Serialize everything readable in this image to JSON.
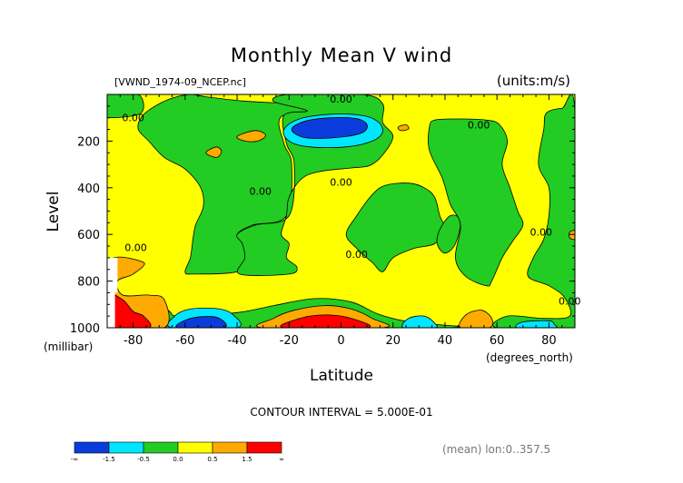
{
  "chart_data": {
    "type": "contour",
    "title": "Monthly Mean V wind",
    "dataset_label": "[VWND_1974-09_NCEP.nc]",
    "units_label": "(units:m/s)",
    "xlabel": "Latitude",
    "x_units": "(degrees_north)",
    "ylabel": "Level",
    "y_units": "(millibar)",
    "x_range": [
      -90,
      90
    ],
    "y_range": [
      1000,
      0
    ],
    "x_ticks": [
      -80,
      -60,
      -40,
      -20,
      0,
      20,
      40,
      60,
      80
    ],
    "y_ticks": [
      200,
      400,
      600,
      800,
      1000
    ],
    "contour_interval_text": "CONTOUR INTERVAL = 5.000E-01",
    "footnote": "(mean) lon:0..357.5",
    "contour_labels": [
      {
        "text": "0.00",
        "lat": -80,
        "lev": 100
      },
      {
        "text": "0.00",
        "lat": 0,
        "lev": 20
      },
      {
        "text": "0.00",
        "lat": 53,
        "lev": 130
      },
      {
        "text": "0.00",
        "lat": 0,
        "lev": 375
      },
      {
        "text": "0.00",
        "lat": -31,
        "lev": 415
      },
      {
        "text": "0.00",
        "lat": -79,
        "lev": 655
      },
      {
        "text": "0.00",
        "lat": 6,
        "lev": 685
      },
      {
        "text": "0.00",
        "lat": 77,
        "lev": 590
      },
      {
        "text": "0.00",
        "lat": 88,
        "lev": 885
      }
    ],
    "colorbar": {
      "colors": [
        "#0a3cdc",
        "#00e6ff",
        "#22cc22",
        "#ffff00",
        "#ffaa00",
        "#ff0000"
      ],
      "tick_labels": [
        "-∞",
        "-1.5",
        "-0.5",
        "0.0",
        "0.5",
        "1.5",
        "∞"
      ]
    },
    "regions": [
      {
        "level": "0 to 0.5 m/s",
        "color": "#ffff00",
        "shape": "background",
        "points": []
      },
      {
        "level": "-0.5 to 0 m/s",
        "color": "#22cc22",
        "shape": "curve",
        "points": [
          [
            -90,
            0
          ],
          [
            -78,
            0
          ],
          [
            -77,
            80
          ],
          [
            -89,
            100
          ],
          [
            -90,
            80
          ]
        ]
      },
      {
        "level": "-0.5 to 0 m/s",
        "color": "#22cc22",
        "shape": "curve",
        "points": [
          [
            -58,
            0
          ],
          [
            -52,
            10
          ],
          [
            -38,
            28
          ],
          [
            -27,
            35
          ],
          [
            -16,
            40
          ],
          [
            -8,
            75
          ],
          [
            -23,
            95
          ],
          [
            -22,
            210
          ],
          [
            -19,
            300
          ],
          [
            -21,
            520
          ],
          [
            -34,
            560
          ],
          [
            -40,
            600
          ],
          [
            -37,
            640
          ],
          [
            -36,
            700
          ],
          [
            -40,
            760
          ],
          [
            -57,
            770
          ],
          [
            -60,
            760
          ],
          [
            -58,
            700
          ],
          [
            -57,
            620
          ],
          [
            -56,
            560
          ],
          [
            -53,
            480
          ],
          [
            -54,
            400
          ],
          [
            -60,
            320
          ],
          [
            -68,
            270
          ],
          [
            -74,
            200
          ],
          [
            -78,
            150
          ],
          [
            -77,
            100
          ],
          [
            -73,
            60
          ],
          [
            -66,
            20
          ]
        ]
      },
      {
        "level": "-0.5 to 0 m/s",
        "color": "#22cc22",
        "shape": "curve",
        "points": [
          [
            -26,
            30
          ],
          [
            -20,
            0
          ],
          [
            8,
            0
          ],
          [
            16,
            40
          ],
          [
            16,
            120
          ],
          [
            20,
            180
          ],
          [
            16,
            260
          ],
          [
            11,
            305
          ],
          [
            4,
            315
          ],
          [
            -8,
            330
          ],
          [
            -15,
            360
          ],
          [
            -20,
            440
          ],
          [
            -21,
            520
          ],
          [
            -23,
            600
          ],
          [
            -20,
            640
          ],
          [
            -21,
            700
          ],
          [
            -17,
            740
          ],
          [
            -20,
            770
          ],
          [
            -39,
            770
          ],
          [
            -37,
            700
          ],
          [
            -38,
            640
          ],
          [
            -40,
            600
          ],
          [
            -33,
            560
          ],
          [
            -20,
            520
          ],
          [
            -18,
            300
          ],
          [
            -21,
            210
          ],
          [
            -22,
            90
          ],
          [
            -13,
            70
          ]
        ]
      },
      {
        "level": "-0.5 to 0 m/s",
        "color": "#22cc22",
        "shape": "curve",
        "points": [
          [
            -72,
            870
          ],
          [
            -66,
            930
          ],
          [
            -62,
            950
          ],
          [
            -40,
            935
          ],
          [
            -26,
            905
          ],
          [
            -10,
            875
          ],
          [
            4,
            890
          ],
          [
            14,
            940
          ],
          [
            24,
            970
          ],
          [
            36,
            985
          ],
          [
            39,
            1000
          ],
          [
            -72,
            1000
          ]
        ]
      },
      {
        "level": "-0.5 to 0 m/s",
        "color": "#22cc22",
        "shape": "curve",
        "points": [
          [
            2,
            600
          ],
          [
            6,
            520
          ],
          [
            12,
            430
          ],
          [
            17,
            390
          ],
          [
            26,
            380
          ],
          [
            32,
            400
          ],
          [
            36,
            440
          ],
          [
            38,
            520
          ],
          [
            40,
            580
          ],
          [
            36,
            640
          ],
          [
            28,
            660
          ],
          [
            20,
            700
          ],
          [
            16,
            760
          ],
          [
            12,
            720
          ],
          [
            6,
            660
          ]
        ]
      },
      {
        "level": "-0.5 to 0 m/s",
        "color": "#22cc22",
        "shape": "curve",
        "points": [
          [
            38,
            580
          ],
          [
            42,
            520
          ],
          [
            46,
            540
          ],
          [
            44,
            640
          ],
          [
            40,
            680
          ],
          [
            37,
            640
          ]
        ]
      },
      {
        "level": "-0.5 to 0 m/s",
        "color": "#22cc22",
        "shape": "curve",
        "points": [
          [
            34,
            140
          ],
          [
            36,
            110
          ],
          [
            44,
            105
          ],
          [
            56,
            110
          ],
          [
            61,
            130
          ],
          [
            64,
            200
          ],
          [
            62,
            300
          ],
          [
            65,
            400
          ],
          [
            68,
            500
          ],
          [
            70,
            560
          ],
          [
            66,
            630
          ],
          [
            62,
            700
          ],
          [
            58,
            800
          ],
          [
            56,
            820
          ],
          [
            48,
            780
          ],
          [
            44,
            700
          ],
          [
            46,
            560
          ],
          [
            42,
            470
          ],
          [
            39,
            360
          ],
          [
            34,
            240
          ]
        ]
      },
      {
        "level": "-0.5 to 0 m/s",
        "color": "#22cc22",
        "shape": "curve",
        "points": [
          [
            79,
            80
          ],
          [
            85,
            60
          ],
          [
            90,
            70
          ],
          [
            90,
            1000
          ],
          [
            60,
            1000
          ],
          [
            64,
            950
          ],
          [
            78,
            960
          ],
          [
            88,
            950
          ],
          [
            86,
            870
          ],
          [
            80,
            820
          ],
          [
            72,
            780
          ],
          [
            74,
            700
          ],
          [
            78,
            620
          ],
          [
            80,
            520
          ],
          [
            80,
            400
          ],
          [
            76,
            300
          ],
          [
            78,
            150
          ]
        ]
      },
      {
        "level": "-1.5 to -0.5 m/s",
        "color": "#00e6ff",
        "shape": "curve",
        "points": [
          [
            -22,
            150
          ],
          [
            -16,
            105
          ],
          [
            -4,
            85
          ],
          [
            8,
            90
          ],
          [
            14,
            115
          ],
          [
            16,
            160
          ],
          [
            12,
            200
          ],
          [
            2,
            225
          ],
          [
            -12,
            225
          ],
          [
            -20,
            200
          ]
        ]
      },
      {
        "level": "below -1.5 m/s",
        "color": "#0a3cdc",
        "shape": "curve",
        "points": [
          [
            -19,
            150
          ],
          [
            -14,
            115
          ],
          [
            -4,
            100
          ],
          [
            6,
            104
          ],
          [
            10,
            130
          ],
          [
            8,
            165
          ],
          [
            -2,
            185
          ],
          [
            -14,
            185
          ]
        ]
      },
      {
        "level": "-1.5 to -0.5 m/s",
        "color": "#00e6ff",
        "shape": "curve",
        "points": [
          [
            -65,
            1000
          ],
          [
            -64,
            950
          ],
          [
            -58,
            920
          ],
          [
            -48,
            918
          ],
          [
            -42,
            940
          ],
          [
            -40,
            1000
          ]
        ]
      },
      {
        "level": "below -1.5 m/s",
        "color": "#0a3cdc",
        "shape": "curve",
        "points": [
          [
            -63,
            1000
          ],
          [
            -58,
            960
          ],
          [
            -48,
            955
          ],
          [
            -45,
            1000
          ]
        ]
      },
      {
        "level": "-1.5 to -0.5 m/s",
        "color": "#00e6ff",
        "shape": "curve",
        "points": [
          [
            24,
            1000
          ],
          [
            26,
            960
          ],
          [
            32,
            950
          ],
          [
            36,
            980
          ],
          [
            36,
            1000
          ]
        ]
      },
      {
        "level": "-1.5 to -0.5 m/s",
        "color": "#00e6ff",
        "shape": "curve",
        "points": [
          [
            68,
            1000
          ],
          [
            70,
            975
          ],
          [
            80,
            970
          ],
          [
            82,
            985
          ],
          [
            82,
            1000
          ]
        ]
      },
      {
        "level": "0.5 to 1.5 m/s",
        "color": "#ffaa00",
        "shape": "curve",
        "points": [
          [
            -76,
            720
          ],
          [
            -80,
            770
          ],
          [
            -86,
            800
          ],
          [
            -84,
            860
          ],
          [
            -74,
            860
          ],
          [
            -68,
            880
          ],
          [
            -68,
            1000
          ],
          [
            -90,
            1000
          ],
          [
            -90,
            720
          ]
        ]
      },
      {
        "level": "above 1.5 m/s",
        "color": "#ff0000",
        "shape": "curve",
        "points": [
          [
            -90,
            860
          ],
          [
            -84,
            880
          ],
          [
            -80,
            930
          ],
          [
            -76,
            950
          ],
          [
            -74,
            1000
          ],
          [
            -90,
            1000
          ]
        ]
      },
      {
        "level": "0.5 to 1.5 m/s",
        "color": "#ffaa00",
        "shape": "curve",
        "points": [
          [
            -30,
            1000
          ],
          [
            -26,
            960
          ],
          [
            -18,
            925
          ],
          [
            -6,
            905
          ],
          [
            4,
            920
          ],
          [
            12,
            960
          ],
          [
            16,
            1000
          ]
        ]
      },
      {
        "level": "above 1.5 m/s",
        "color": "#ff0000",
        "shape": "curve",
        "points": [
          [
            -22,
            1000
          ],
          [
            -16,
            960
          ],
          [
            -6,
            945
          ],
          [
            4,
            960
          ],
          [
            10,
            1000
          ]
        ]
      },
      {
        "level": "0.5 to 1.5 m/s",
        "color": "#ffaa00",
        "shape": "curve",
        "points": [
          [
            46,
            1000
          ],
          [
            48,
            945
          ],
          [
            54,
            925
          ],
          [
            58,
            960
          ],
          [
            57,
            1000
          ]
        ]
      },
      {
        "level": "0.5 to 1.5 m/s",
        "color": "#ffaa00",
        "shape": "curve",
        "points": [
          [
            -40,
            180
          ],
          [
            -33,
            155
          ],
          [
            -29,
            175
          ],
          [
            -32,
            200
          ],
          [
            -37,
            200
          ]
        ]
      },
      {
        "level": "0.5 to 1.5 m/s",
        "color": "#ffaa00",
        "shape": "curve",
        "points": [
          [
            -52,
            250
          ],
          [
            -48,
            225
          ],
          [
            -46,
            245
          ],
          [
            -48,
            270
          ]
        ]
      },
      {
        "level": "0.5 to 1.5 m/s",
        "color": "#ffaa00",
        "shape": "curve",
        "points": [
          [
            22,
            140
          ],
          [
            25,
            130
          ],
          [
            26,
            148
          ],
          [
            23,
            155
          ]
        ]
      },
      {
        "level": "0.5 to 1.5 m/s",
        "color": "#ffaa00",
        "shape": "curve",
        "points": [
          [
            88,
            590
          ],
          [
            90,
            585
          ],
          [
            90,
            620
          ],
          [
            88,
            615
          ]
        ]
      },
      {
        "level": "missing",
        "color": "#ffffff",
        "shape": "poly",
        "points": [
          [
            -90,
            700
          ],
          [
            -86,
            700
          ],
          [
            -86,
            850
          ],
          [
            -87,
            850
          ],
          [
            -87,
            1000
          ],
          [
            -90,
            1000
          ]
        ]
      }
    ]
  }
}
